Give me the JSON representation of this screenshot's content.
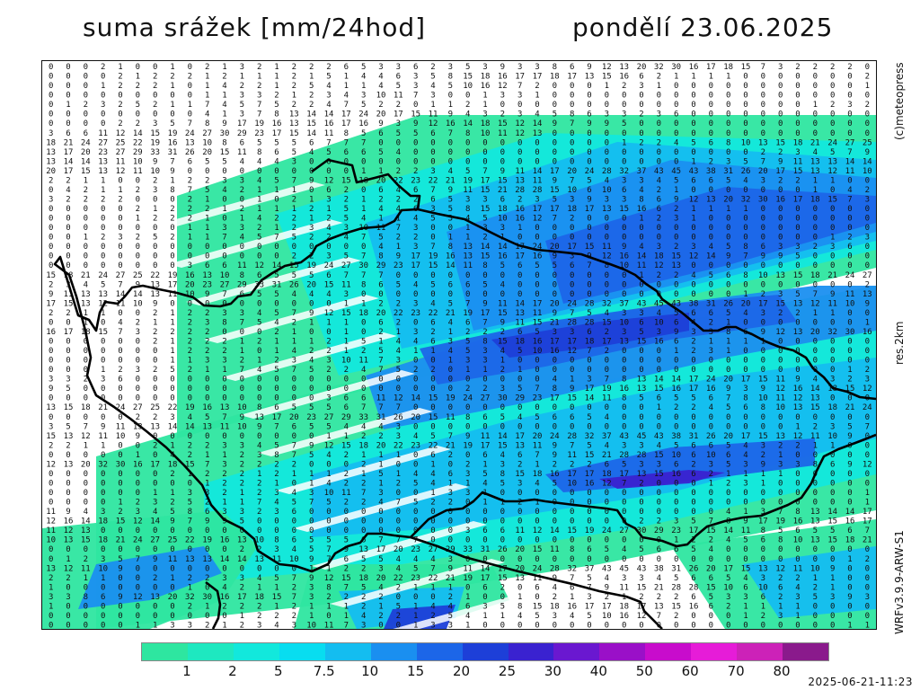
{
  "title": "suma srážek [mm/24hod]",
  "date": "pondělí 23.06.2025",
  "side": {
    "copyright": "(c)meteopress",
    "resolution": "res.2km",
    "model": "WRFv3.9.9-ARW-S1"
  },
  "timestamp": "2025-06-21-11:23",
  "legend": {
    "labels": [
      "1",
      "2",
      "5",
      "7.5",
      "10",
      "15",
      "20",
      "25",
      "30",
      "40",
      "50",
      "60",
      "70",
      "80"
    ],
    "colors": [
      "#2ee6a0",
      "#1ee8c0",
      "#12e8dc",
      "#08ddf0",
      "#14bdf0",
      "#1a8ff0",
      "#1c66e8",
      "#1d3fd8",
      "#3a22d0",
      "#6a18d0",
      "#9a10c8",
      "#c80ccc",
      "#e61cd8",
      "#cc22b8",
      "#8a1a8c"
    ]
  },
  "map": {
    "sample_rows": [
      "0 0 0 2 1 0 0 1 0 2 1 3 2 1 2 2 2 6 5 3 3 6 2 3 5 3 9 3 3 8 6 9 12 13 20 32 30 16 17 18 15 7 3 2 2 2 2",
      "0 0 0 0 0 0 0 2 1 2 2 2 1 2 1 1 1 2 1 5 1 4 4 6 3 5 8 15 18 16 17 17 18 17 13 15 16 6 2 1 1 1 1",
      "0 0 0 0 0 0 0 0 0 1 2 2 2 1 0 1 4 2 2 1 2 5 4 1 1 4 5 3 4 5 10 16 12 7 2 0 0 0 1 2 3 1 0 0",
      "0 0 0 0 0 0 0 0 0 0 0 0 0 0 0 0 0 0 1 1 3 3 2 1 2 3 4 3 10 11 7 3 0 0 1 3 3 1 0 0 0",
      "0 0 0 0 0 0 0 0 0 0 0 0 0 1 2 3 2 5 2 1 1 7 4 5 7 5 2 2 4 7 5 2 2 0 1 1 2 1 0 0 0 0 0",
      "0 0 0 0 0 0 0 0 0 0 0 0 0 0 0 0 0 0 0 0 0 0 0 0 4 1 3 7 8 13 14 14 17 24 20 17 15 11 9 4 3 2 3 4 5 8 6 3 3 2 3 6",
      "0 0 0 0 0 0 0 0 0 0 0 0 0 0 0 0 0 0 0 0 0 0 2 2 3 5 7 8 9 17 19 16 13 15 16 17 16 9 3 9 12 16 14 18 15 12 14 9 7 9 9 5",
      "0 0 0 0 0 0 0 0 0 0 0 0 0 0 0 0 0 0 0 0 0 3 6 6 11 12 14 15 19 24 27 30 29 23 17 15 14 11 8 5 6 5 5 6 7 8 10 11 12 13",
      "0 0 0 0 0 0 0 0 0 0 0 0 0 0 1 2 2 4 5 6 8 10 13 15 18 21 24 27 25 22 19 16 13 10 8 6 5 5 5 6 7 7 7",
      "0 0 0 0 0 0 0 0 0 0 0 0 0 0 0 0 0 0 0 0 2 2 3 4 5 7 9 13 17 20 23 27 29 33 31 26 20 15 11 8 6 5 4 5 6 6 5 4",
      "0 0 0 0 0 0 0 0 0 0 0 0 0 0 0 0 0 0 0 0 0 0 1 2 3 5 7 9 11 13 13 14 14 13 11 10 9 7 6 5 5 4 4 4 3",
      "0 0 0 0 0 0 0 0 0 0 1 1 2 2 3 4 5 7 9 11 14 17 20 24 28 32 37 43 45 43 38 31 26 20 17 15 13 12 11 10 9",
      "2 1 2 2 3 3 4 5 7 9 12 15 18 20 22 23 22 21 19 17 15 13 11 9 7 5 4 3 3 4 5 6 6 5 4 3 2 2 1 1 0 0",
      "3 8 7 5 4 2 1 1 1 0 6 2 0 6 4 6 7 9 11 15 21 28 28 15 10 6 10 6 4 2 1 0 0 0 0 0 0 0 1 0 4 2 1 1 2"
    ]
  }
}
